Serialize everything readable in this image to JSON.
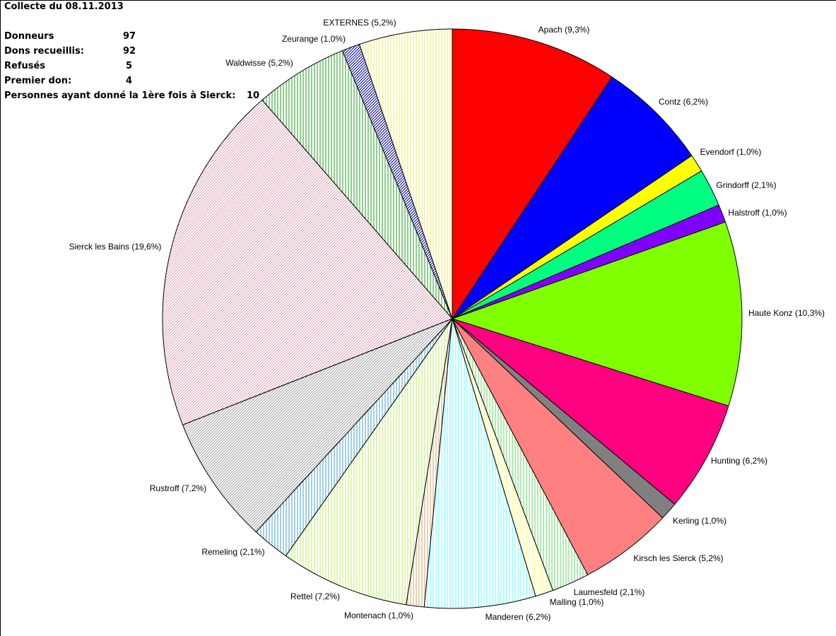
{
  "header": {
    "title": "Collecte du 08.11.2013",
    "stats": [
      {
        "label": "Donneurs",
        "value": "97"
      },
      {
        "label": "Dons recueillis:",
        "value": "92"
      },
      {
        "label": "Refusés",
        "value": "5"
      },
      {
        "label": "Premier don:",
        "value": "4"
      },
      {
        "label": "Personnes ayant donné la 1ère fois à Sierck:",
        "value": "10"
      }
    ]
  },
  "chart_data": {
    "type": "pie",
    "title": "Collecte du 08.11.2013",
    "start": "top, clockwise",
    "slices": [
      {
        "label": "Apach (9,3%)",
        "value": 9.3,
        "color": "#ff0000",
        "fill": "solid"
      },
      {
        "label": "Contz (6,2%)",
        "value": 6.2,
        "color": "#0000ff",
        "fill": "solid"
      },
      {
        "label": "Evendorf (1,0%)",
        "value": 1.0,
        "color": "#ffff00",
        "fill": "solid"
      },
      {
        "label": "Grindorff (2,1%)",
        "value": 2.1,
        "color": "#00ff80",
        "fill": "solid"
      },
      {
        "label": "Halstroff (1,0%)",
        "value": 1.0,
        "color": "#8000ff",
        "fill": "solid"
      },
      {
        "label": "Haute Konz (10,3%)",
        "value": 10.3,
        "color": "#80ff00",
        "fill": "solid"
      },
      {
        "label": "Hunting (6,2%)",
        "value": 6.2,
        "color": "#ff0080",
        "fill": "solid"
      },
      {
        "label": "Kerling (1,0%)",
        "value": 1.0,
        "color": "#808080",
        "fill": "solid"
      },
      {
        "label": "Kirsch les Sierck (5,2%)",
        "value": 5.2,
        "color": "#ff8080",
        "fill": "solid"
      },
      {
        "label": "Laumesfeld (2,1%)",
        "value": 2.1,
        "color": "#80e080",
        "fill": "hatch"
      },
      {
        "label": "Malling (1,0%)",
        "value": 1.0,
        "color": "#ffff80",
        "fill": "hatch"
      },
      {
        "label": "Manderen (6,2%)",
        "value": 6.2,
        "color": "#80ffff",
        "fill": "hatch"
      },
      {
        "label": "Montenach (1,0%)",
        "value": 1.0,
        "color": "#e0b080",
        "fill": "hatch"
      },
      {
        "label": "Rettel (7,2%)",
        "value": 7.2,
        "color": "#c8f080",
        "fill": "hatch"
      },
      {
        "label": "Remeling (2,1%)",
        "value": 2.1,
        "color": "#60b0d8",
        "fill": "hatch"
      },
      {
        "label": "Rustroff (7,2%)",
        "value": 7.2,
        "color": "#a0a0a0",
        "fill": "hatch"
      },
      {
        "label": "Sierck les Bains (19,6%)",
        "value": 19.6,
        "color": "#e0a0b0",
        "fill": "hatch"
      },
      {
        "label": "Waldwisse (5,2%)",
        "value": 5.2,
        "color": "#40b040",
        "fill": "hatch"
      },
      {
        "label": "Zeurange (1,0%)",
        "value": 1.0,
        "color": "#0000a0",
        "fill": "hatch"
      },
      {
        "label": "EXTERNES (5,2%)",
        "value": 5.2,
        "color": "#f0f080",
        "fill": "hatch"
      }
    ]
  }
}
